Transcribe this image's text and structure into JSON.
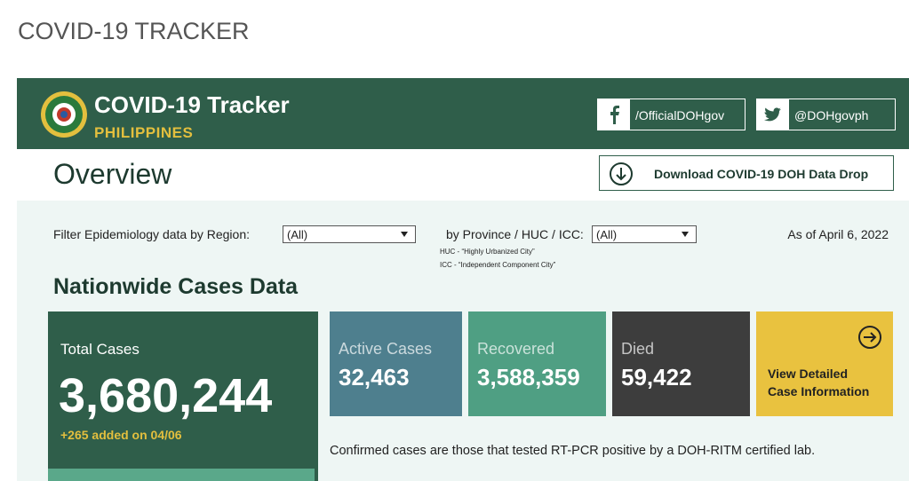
{
  "page_title": "COVID-19 TRACKER",
  "header": {
    "title": "COVID-19 Tracker",
    "subtitle": "PHILIPPINES",
    "social": [
      {
        "label": "/OfficialDOHgov"
      },
      {
        "label": "@DOHgovph"
      }
    ]
  },
  "overview": {
    "title": "Overview",
    "download_button": "Download COVID-19 DOH Data Drop"
  },
  "filters": {
    "region_label": "Filter Epidemiology data by Region:",
    "region_value": "(All)",
    "province_label": "by Province / HUC / ICC:",
    "province_value": "(All)",
    "notes": [
      "HUC - “Highly Urbanized City”",
      "ICC - “Independent Component City”"
    ],
    "as_of": "As of April 6, 2022"
  },
  "section_title": "Nationwide Cases Data",
  "cards": {
    "total": {
      "label": "Total Cases",
      "value": "3,680,244",
      "added": "+265 added on 04/06"
    },
    "active": {
      "label": "Active Cases",
      "value": "32,463"
    },
    "recovered": {
      "label": "Recovered",
      "value": "3,588,359"
    },
    "died": {
      "label": "Died",
      "value": "59,422"
    },
    "details": {
      "lines": [
        "View Detailed",
        "Case Information"
      ]
    }
  },
  "footnote": "Confirmed cases are those that tested RT-PCR positive by a DOH-RITM certified lab."
}
